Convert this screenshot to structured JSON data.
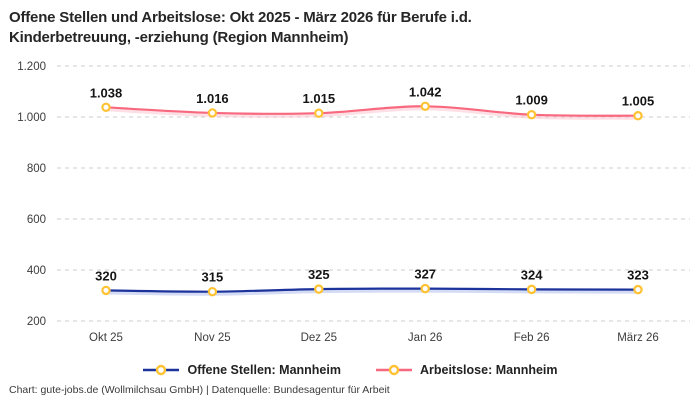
{
  "header": {
    "title_line1": "Offene Stellen und Arbeitslose: Okt 2025 - März 2026 für Berufe i.d.",
    "title_line2": "Kinderbetreuung, -erziehung (Region Mannheim)"
  },
  "chart_data": {
    "type": "line",
    "title": "Offene Stellen und Arbeitslose: Okt 2025 - März 2026 für Berufe i.d. Kinderbetreuung, -erziehung (Region Mannheim)",
    "categories": [
      "Okt 25",
      "Nov 25",
      "Dez 25",
      "Jan 26",
      "Feb 26",
      "März 26"
    ],
    "series": [
      {
        "name": "Offene Stellen: Mannheim",
        "values": [
          320,
          315,
          325,
          327,
          324,
          323
        ],
        "point_labels": [
          "320",
          "315",
          "325",
          "327",
          "324",
          "323"
        ],
        "color": "#1c339c",
        "halo_color": "#aab8ea"
      },
      {
        "name": "Arbeitslose: Mannheim",
        "values": [
          1038,
          1016,
          1015,
          1042,
          1009,
          1005
        ],
        "point_labels": [
          "1.038",
          "1.016",
          "1.015",
          "1.042",
          "1.009",
          "1.005"
        ],
        "color": "#f8697f",
        "halo_color": "#fbc2cc"
      }
    ],
    "marker": {
      "fill": "#ffffff",
      "stroke": "#ffc233"
    },
    "yticks": [
      {
        "value": 200,
        "label": "200"
      },
      {
        "value": 400,
        "label": "400"
      },
      {
        "value": 600,
        "label": "600"
      },
      {
        "value": 800,
        "label": "800"
      },
      {
        "value": 1000,
        "label": "1.000"
      },
      {
        "value": 1200,
        "label": "1.200"
      }
    ],
    "ylim": [
      200,
      1200
    ],
    "grid": "dashed horizontal",
    "grid_color": "#cccccc",
    "legend_position": "bottom"
  },
  "legend": {
    "items": [
      {
        "label": "Offene Stellen: Mannheim",
        "color": "#1c339c"
      },
      {
        "label": "Arbeitslose: Mannheim",
        "color": "#f8697f"
      }
    ],
    "marker_stroke": "#ffc233",
    "marker_fill": "#ffffff"
  },
  "footer": {
    "text": "Chart: gute-jobs.de (Wollmilchsau GmbH) | Datenquelle: Bundesagentur für Arbeit"
  }
}
